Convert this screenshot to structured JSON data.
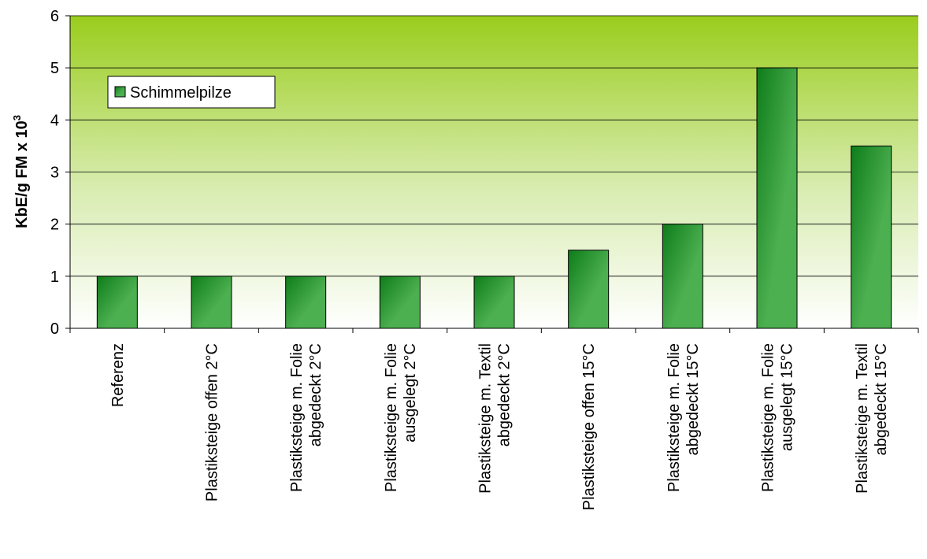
{
  "chart_data": {
    "type": "bar",
    "categories": [
      [
        "Referenz"
      ],
      [
        "Plastiksteige offen 2°C"
      ],
      [
        "Plastiksteige m. Folie",
        "abgedeckt 2°C"
      ],
      [
        "Plastiksteige m. Folie",
        "ausgelegt 2°C"
      ],
      [
        "Plastiksteige m. Textil",
        "abgedeckt 2°C"
      ],
      [
        "Plastiksteige offen 15°C"
      ],
      [
        "Plastiksteige m. Folie",
        "abgedeckt 15°C"
      ],
      [
        "Plastiksteige m. Folie",
        "ausgelegt 15°C"
      ],
      [
        "Plastiksteige m. Textil",
        "abgedeckt 15°C"
      ]
    ],
    "series": [
      {
        "name": "Schimmelpilze",
        "values": [
          1,
          1,
          1,
          1,
          1,
          1.5,
          2,
          5,
          3.5
        ]
      }
    ],
    "ylabel": {
      "text": "KbE/g FM x 10",
      "superscript": "3"
    },
    "ylim": [
      0,
      6
    ],
    "yticks": [
      0,
      1,
      2,
      3,
      4,
      5,
      6
    ],
    "grid": true,
    "legend": "top-left",
    "colors": {
      "bar_dark": "#0e7c1a",
      "bar_light": "#4caf50",
      "bg_top": "#9acd1d",
      "bg_bottom": "#ffffff",
      "gridline": "#000000"
    }
  }
}
